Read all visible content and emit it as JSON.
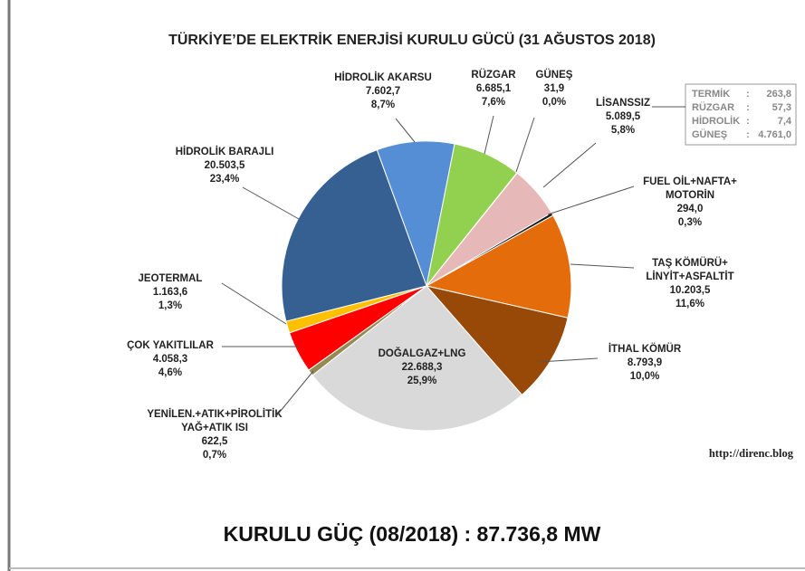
{
  "chart_data": {
    "type": "pie",
    "title": "TÜRKİYE’DE ELEKTRİK ENERJİSİ KURULU GÜCÜ  (31 AĞUSTOS 2018)",
    "categories": [
      "HİDROLİK AKARSU",
      "RÜZGAR",
      "GÜNEŞ",
      "LİSANSSIZ",
      "FUEL OİL+NAFTA+\nMOTORİN",
      "TAŞ KÖMÜRÜ+\nLİNYİT+ASFALTİT",
      "İTHAL KÖMÜR",
      "DOĞALGAZ+LNG",
      "YENİLEN.+ATIK+PİROLİTİK\nYAĞ+ATIK ISI",
      "ÇOK YAKITLILAR",
      "JEOTERMAL",
      "HİDROLİK BARAJLI"
    ],
    "values": [
      7602.7,
      6685.1,
      31.9,
      5089.5,
      294.0,
      10203.5,
      8793.9,
      22688.3,
      622.5,
      4058.3,
      1163.6,
      20503.5
    ],
    "value_labels": [
      "7.602,7",
      "6.685,1",
      "31,9",
      "5.089,5",
      "294,0",
      "10.203,5",
      "8.793,9",
      "22.688,3",
      "622,5",
      "4.058,3",
      "1.163,6",
      "20.503,5"
    ],
    "percent_labels": [
      "8,7%",
      "7,6%",
      "0,0%",
      "5,8%",
      "0,3%",
      "11,6%",
      "10,0%",
      "25,9%",
      "0,7%",
      "4,6%",
      "1,3%",
      "23,4%"
    ],
    "colors": [
      "#558ed5",
      "#92d050",
      "#ffff00",
      "#e6b9b8",
      "#1a1a1a",
      "#e46c0a",
      "#984807",
      "#d9d9d9",
      "#948a54",
      "#ff0000",
      "#ffc000",
      "#376092"
    ],
    "inset": {
      "separator": ":",
      "rows": [
        {
          "name": "TERMİK",
          "value": 263.8,
          "label": "263,8"
        },
        {
          "name": "RÜZGAR",
          "value": 57.3,
          "label": "57,3"
        },
        {
          "name": "HİDROLİK",
          "value": 7.4,
          "label": "7,4"
        },
        {
          "name": "GÜNEŞ",
          "value": 4761.0,
          "label": "4.761,0"
        }
      ]
    },
    "source": "http://direnc.blog",
    "footer": "KURULU GÜÇ (08/2018) : 87.736,8 MW"
  }
}
